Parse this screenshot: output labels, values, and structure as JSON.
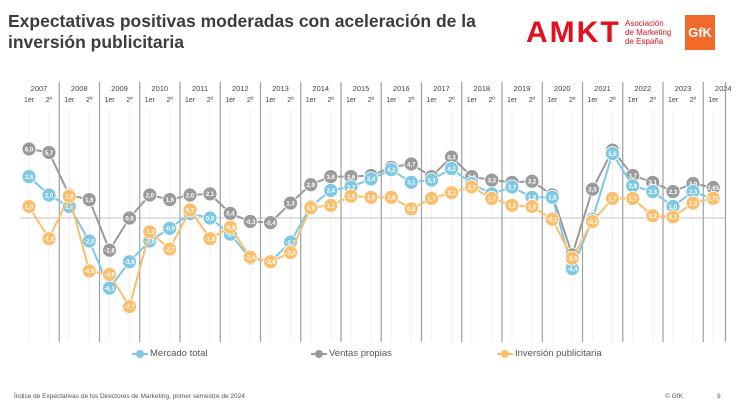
{
  "header": {
    "title": "Expectativas positivas moderadas con aceleración de la inversión publicitaria",
    "logo_amkt": "AMKT",
    "logo_amkt_sub": [
      "Asociación",
      "de Marketing",
      "de España"
    ],
    "logo_gfk": "GfK"
  },
  "footer": {
    "source": "Índice de Expectativas de los Directores de Marketing, primer semestre de 2024",
    "copyright": "© GfK",
    "page": "9"
  },
  "colors": {
    "mercado": "#7ec8e3",
    "ventas": "#9a9a9a",
    "inversion": "#fbbf6b",
    "amkt": "#e2101f",
    "gfk": "#f26a2a"
  },
  "chart_data": {
    "type": "line",
    "title": "",
    "xlabel": "",
    "ylabel": "",
    "ylim": [
      -9,
      7
    ],
    "grid": true,
    "legend_position": "bottom",
    "years": [
      "2007",
      "2008",
      "2009",
      "2010",
      "2011",
      "2012",
      "2013",
      "2014",
      "2015",
      "2016",
      "2017",
      "2018",
      "2019",
      "2020",
      "2021",
      "2022",
      "2023",
      "2024"
    ],
    "semester_labels": [
      "1er",
      "2º"
    ],
    "x": [
      "2007-1er",
      "2007-2º",
      "2008-1er",
      "2008-2º",
      "2009-1er",
      "2009-2º",
      "2010-1er",
      "2010-2º",
      "2011-1er",
      "2011-2º",
      "2012-1er",
      "2012-2º",
      "2013-1er",
      "2013-2º",
      "2014-1er",
      "2014-2º",
      "2015-1er",
      "2015-2º",
      "2016-1er",
      "2016-2º",
      "2017-1er",
      "2017-2º",
      "2018-1er",
      "2018-2º",
      "2019-1er",
      "2019-2º",
      "2020-1er",
      "2020-2º",
      "2021-1er",
      "2021-2º",
      "2022-1er",
      "2022-2º",
      "2023-1er",
      "2023-2º",
      "2024-1er"
    ],
    "series": [
      {
        "name": "Mercado total",
        "color": "#7ec8e3",
        "values": [
          3.6,
          2.0,
          1.0,
          -2.0,
          -6.1,
          -3.8,
          -2.0,
          -0.9,
          0.4,
          0.0,
          -1.4,
          -3.5,
          -3.8,
          -2.1,
          1.0,
          2.4,
          2.7,
          3.4,
          4.2,
          3.1,
          3.3,
          4.3,
          3.0,
          2.1,
          2.7,
          1.8,
          1.8,
          -4.4,
          -0.1,
          5.6,
          2.8,
          2.3,
          1.0,
          2.3,
          1.65
        ],
        "labels": [
          "3,6",
          "2,0",
          "1,0",
          "-2,0",
          "-6,1",
          "-3,8",
          "-2,0",
          "-0,9",
          "0,4",
          "0,0",
          "-1,4",
          "-3,5",
          "-3,8",
          "-2,1",
          "1,0",
          "2,4",
          "2,7",
          "3,4",
          "4,2",
          "3,1",
          "3,3",
          "4,3",
          "3,0",
          "2,1",
          "2,7",
          "1,8",
          "1,8",
          "-4,4",
          "-0,1",
          "5,6",
          "2,8",
          "2,3",
          "1,0",
          "2,3",
          "1,65"
        ]
      },
      {
        "name": "Ventas propias",
        "color": "#9a9a9a",
        "values": [
          6.0,
          5.7,
          2.0,
          1.6,
          -2.8,
          0.0,
          2.0,
          1.6,
          2.0,
          2.1,
          0.4,
          -0.3,
          -0.4,
          1.3,
          2.9,
          3.6,
          3.6,
          3.7,
          4.4,
          4.7,
          3.6,
          5.3,
          3.6,
          3.3,
          3.1,
          3.2,
          2.0,
          -3.2,
          2.5,
          5.9,
          3.7,
          3.1,
          2.3,
          3.0,
          2.65
        ],
        "labels": [
          "6,0",
          "5,7",
          "2,0",
          "1,6",
          "-2,8",
          "0,0",
          "2,0",
          "1,6",
          "2,0",
          "2,1",
          "0,4",
          "-0,3",
          "-0,4",
          "1,3",
          "2,9",
          "3,6",
          "3,6",
          "3,7",
          "4,4",
          "4,7",
          "3,6",
          "5,3",
          "3,6",
          "3,3",
          "3,1",
          "3,2",
          "2,0",
          "-3,2",
          "2,5",
          "5,9",
          "3,7",
          "3,1",
          "2,3",
          "3,0",
          "2,65"
        ]
      },
      {
        "name": "Inversión publicitaria",
        "color": "#fbbf6b",
        "values": [
          1.0,
          -1.8,
          1.9,
          -4.6,
          -4.9,
          -7.7,
          -1.2,
          -2.7,
          0.7,
          -1.8,
          -0.8,
          -3.4,
          -3.8,
          -3.0,
          0.9,
          1.1,
          1.9,
          1.8,
          1.8,
          0.8,
          1.7,
          2.2,
          2.7,
          1.7,
          1.1,
          1.0,
          -0.1,
          -3.5,
          -0.3,
          1.7,
          1.7,
          0.2,
          0.1,
          1.3,
          1.71
        ],
        "labels": [
          "1,0",
          "-1,8",
          "1,9",
          "-4,6",
          "-4,9",
          "-7,7",
          "-1,2",
          "-2,7",
          "0,7",
          "-1,8",
          "-0,8",
          "-3,4",
          "-3,8",
          "-3,0",
          "0,9",
          "1,1",
          "1,9",
          "1,8",
          "1,8",
          "0,8",
          "1,7",
          "2,2",
          "2,7",
          "1,7",
          "1,1",
          "1,0",
          "-0,1",
          "-3,5",
          "-0,3",
          "1,7",
          "1,7",
          "0,2",
          "0,1",
          "1,3",
          "1,71"
        ]
      }
    ]
  }
}
